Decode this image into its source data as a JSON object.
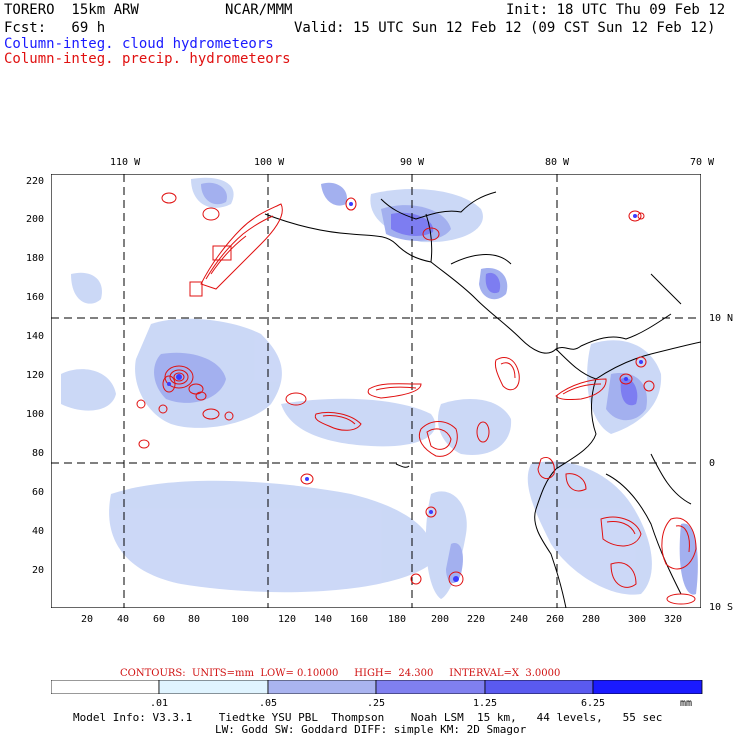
{
  "header": {
    "model": "TORERO  15km ARW",
    "org": "NCAR/MMM",
    "init": "Init: 18 UTC Thu 09 Feb 12",
    "fcst": "Fcst:   69 h",
    "valid": "Valid: 15 UTC Sun 12 Feb 12 (09 CST Sun 12 Feb 12)",
    "field1": "Column-integ. cloud hydrometeors",
    "field2": "Column-integ. precip. hydrometeors"
  },
  "axes": {
    "top_lon_labels": [
      "110 W",
      "100 W",
      "90 W",
      "80 W",
      "70 W"
    ],
    "right_lat_labels": [
      "10 N",
      "0",
      "10 S"
    ],
    "y_ticks": [
      "220",
      "200",
      "180",
      "160",
      "140",
      "120",
      "100",
      "80",
      "60",
      "40",
      "20"
    ],
    "x_ticks": [
      "20",
      "40",
      "60",
      "80",
      "100",
      "120",
      "140",
      "160",
      "180",
      "200",
      "220",
      "240",
      "260",
      "280",
      "300",
      "320"
    ]
  },
  "contours": {
    "units_label": "CONTOURS:  UNITS=mm  LOW= 0.10000     HIGH=  24.300     INTERVAL=X  3.0000"
  },
  "colorbar": {
    "labels": [
      ".01",
      ".05",
      ".25",
      "1.25",
      "6.25"
    ],
    "unit": "mm",
    "colors": [
      "#ffffff",
      "#e0f4ff",
      "#aab4f0",
      "#8080f0",
      "#5a5af0",
      "#3c3cff",
      "#1a1aff"
    ]
  },
  "model_info": {
    "line1": "Model Info: V3.3.1    Tiedtke YSU PBL  Thompson    Noah LSM  15 km,   44 levels,   55 sec",
    "line2": "LW: Godd SW: Goddard DIFF: simple KM: 2D Smagor"
  },
  "colors": {
    "cloud_blue": "#1a1aff",
    "precip_red": "#e01010",
    "coast": "#000000"
  }
}
